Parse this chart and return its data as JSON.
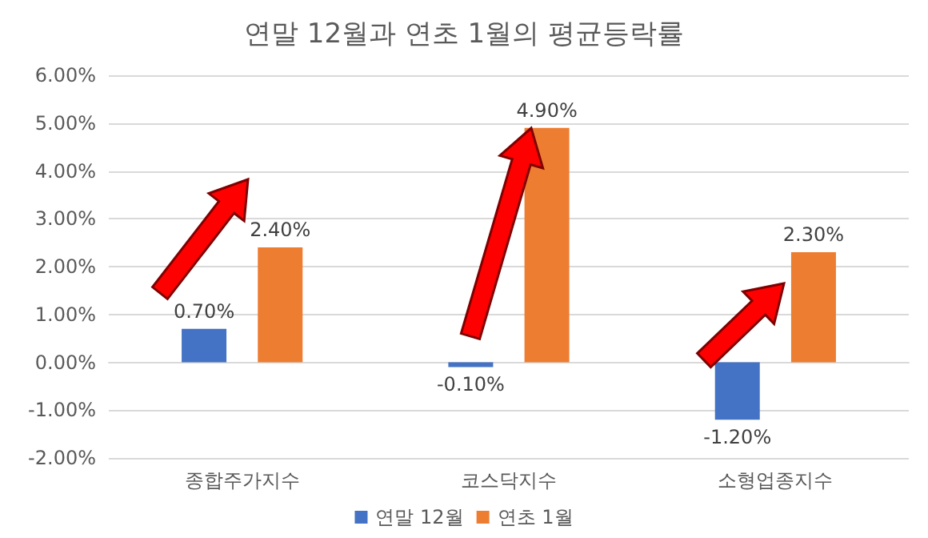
{
  "chart_data": {
    "type": "bar",
    "title": "연말 12월과 연초 1월의 평균등락률",
    "categories": [
      "종합주가지수",
      "코스닥지수",
      "소형업종지수"
    ],
    "series": [
      {
        "name": "연말 12월",
        "color": "#4472c4",
        "values": [
          0.7,
          -0.1,
          -1.2
        ],
        "value_labels": [
          "0.70%",
          "-0.10%",
          "-1.20%"
        ]
      },
      {
        "name": "연초 1월",
        "color": "#ed7d31",
        "values": [
          2.4,
          4.9,
          2.3
        ],
        "value_labels": [
          "2.40%",
          "4.90%",
          "2.30%"
        ]
      }
    ],
    "ylim": [
      -2,
      6
    ],
    "yticks": [
      {
        "value": -2,
        "label": "-2.00%"
      },
      {
        "value": -1,
        "label": "-1.00%"
      },
      {
        "value": 0,
        "label": "0.00%"
      },
      {
        "value": 1,
        "label": "1.00%"
      },
      {
        "value": 2,
        "label": "2.00%"
      },
      {
        "value": 3,
        "label": "3.00%"
      },
      {
        "value": 4,
        "label": "4.00%"
      },
      {
        "value": 5,
        "label": "5.00%"
      },
      {
        "value": 6,
        "label": "6.00%"
      }
    ],
    "grid": true,
    "legend": "bottom"
  }
}
